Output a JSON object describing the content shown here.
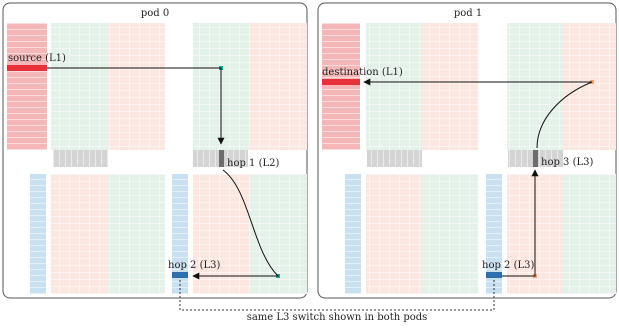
{
  "pods": [
    {
      "title": "pod 0",
      "source_label": "source (L1)",
      "hop1_label": "hop 1 (L2)",
      "hop2_label": "hop 2 (L3)"
    },
    {
      "title": "pod 1",
      "destination_label": "destination (L1)",
      "hop3_label": "hop 3 (L3)",
      "hop2_label": "hop 2 (L3)"
    }
  ],
  "caption": "same L3 switch shown in both pods",
  "colors": {
    "red_strip": "#f4b6b6",
    "red_tint": "#fbe6e0",
    "green_tint": "#e3f1e8",
    "blue_strip": "#c9e0f1",
    "gray_bar": "#d4d4d4",
    "source_red": "#e8303a",
    "hop_blue": "#2e6fae",
    "hop_gray": "#6d6d6d",
    "teal_dot": "#1aa59a",
    "orange_dot": "#f2a46b"
  }
}
